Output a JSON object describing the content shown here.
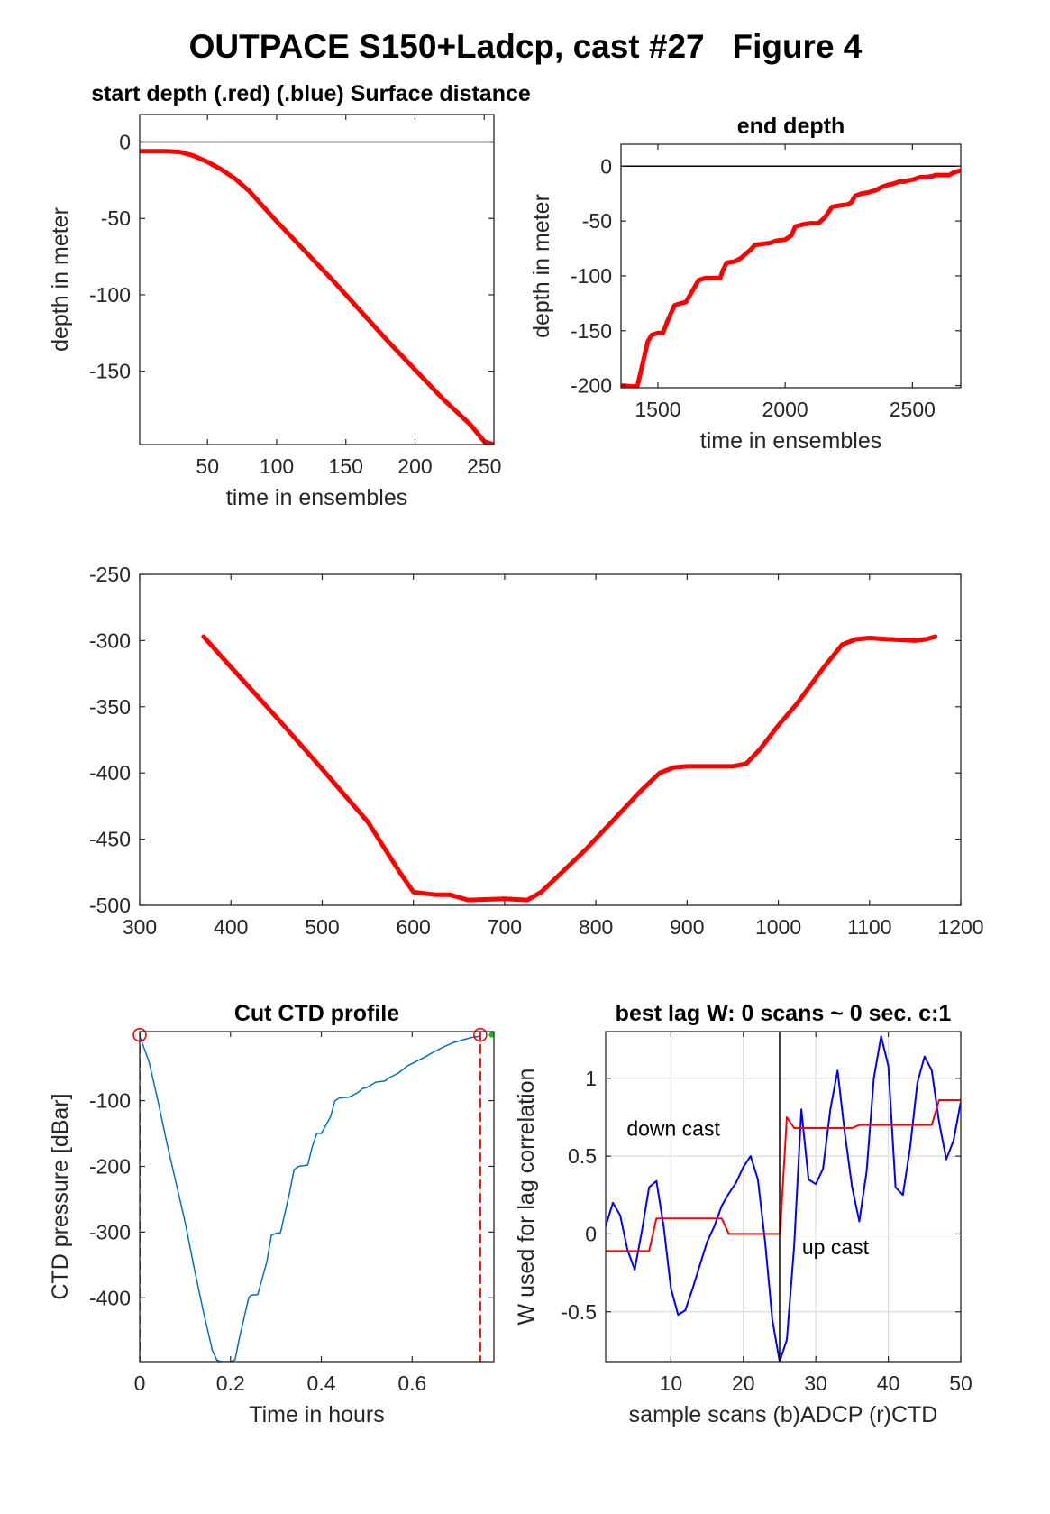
{
  "figure": {
    "title": "OUTPACE S150+Ladcp, cast #27   Figure 4"
  },
  "chart_data": [
    {
      "id": "start",
      "type": "line",
      "title": "start depth (.red) (.blue) Surface distance",
      "xlabel": "time in ensembles",
      "ylabel": "depth in meter",
      "xlim": [
        1,
        257
      ],
      "ylim": [
        -198,
        18
      ],
      "xticks": [
        50,
        100,
        150,
        200,
        250
      ],
      "yticks": [
        0,
        -50,
        -100,
        -150
      ],
      "grid": false,
      "series": [
        {
          "color": "#ff0000",
          "width": 5,
          "x": [
            1,
            10,
            20,
            30,
            40,
            50,
            60,
            70,
            80,
            90,
            100,
            120,
            140,
            160,
            180,
            200,
            220,
            240,
            250,
            257
          ],
          "y": [
            -6,
            -6,
            -6,
            -6.5,
            -9,
            -13,
            -18,
            -24,
            -32,
            -42,
            -52,
            -71,
            -90,
            -110,
            -130,
            -149,
            -168,
            -185,
            -196,
            -198
          ]
        },
        {
          "color": "#000000",
          "width": 1.5,
          "x": [
            1,
            257
          ],
          "y": [
            0,
            0
          ]
        }
      ]
    },
    {
      "id": "end",
      "type": "line",
      "title": "end depth",
      "xlabel": "time in ensembles",
      "ylabel": "depth in meter",
      "xlim": [
        1355,
        2690
      ],
      "ylim": [
        -202,
        20
      ],
      "xticks": [
        1500,
        2000,
        2500
      ],
      "yticks": [
        0,
        -50,
        -100,
        -150,
        -200
      ],
      "grid": false,
      "series": [
        {
          "color": "#ff0000",
          "width": 5,
          "x": [
            1360,
            1405,
            1420,
            1440,
            1460,
            1475,
            1500,
            1520,
            1540,
            1565,
            1590,
            1610,
            1640,
            1660,
            1685,
            1705,
            1745,
            1755,
            1770,
            1800,
            1825,
            1865,
            1880,
            1905,
            1940,
            1965,
            2000,
            2025,
            2040,
            2055,
            2070,
            2100,
            2130,
            2155,
            2185,
            2210,
            2245,
            2260,
            2275,
            2300,
            2325,
            2355,
            2380,
            2405,
            2425,
            2450,
            2470,
            2485,
            2505,
            2530,
            2550,
            2580,
            2590,
            2605,
            2645,
            2660,
            2685
          ],
          "y": [
            -200,
            -201,
            -200,
            -180,
            -160,
            -154,
            -152,
            -152,
            -140,
            -127,
            -125,
            -124,
            -112,
            -104,
            -102,
            -102,
            -102,
            -95,
            -88,
            -87,
            -84,
            -76,
            -72,
            -71,
            -70,
            -68,
            -67,
            -63,
            -55,
            -54,
            -53,
            -52,
            -52,
            -47,
            -37,
            -36,
            -35,
            -33,
            -27,
            -25,
            -24,
            -22,
            -19,
            -17,
            -16,
            -14,
            -14,
            -13,
            -12,
            -10,
            -10,
            -9,
            -8,
            -8,
            -8,
            -6,
            -4
          ]
        },
        {
          "color": "#000000",
          "width": 1.5,
          "x": [
            1355,
            2690
          ],
          "y": [
            0,
            0
          ]
        }
      ]
    },
    {
      "id": "middle",
      "type": "line",
      "title": "",
      "xlabel": "",
      "ylabel": "",
      "xlim": [
        300,
        1200
      ],
      "ylim": [
        -500,
        -250
      ],
      "xticks": [
        300,
        400,
        500,
        600,
        700,
        800,
        900,
        1000,
        1100,
        1200
      ],
      "yticks": [
        -250,
        -300,
        -350,
        -400,
        -450,
        -500
      ],
      "grid": false,
      "series": [
        {
          "color": "#ff0000",
          "width": 5,
          "x": [
            370,
            400,
            450,
            500,
            550,
            585,
            600,
            625,
            640,
            660,
            700,
            725,
            740,
            760,
            790,
            820,
            850,
            870,
            885,
            900,
            950,
            965,
            980,
            1000,
            1020,
            1050,
            1070,
            1085,
            1100,
            1120,
            1150,
            1162,
            1172
          ],
          "y": [
            -297,
            -320,
            -358,
            -397,
            -437,
            -475,
            -490,
            -492,
            -492,
            -496,
            -495,
            -496,
            -490,
            -477,
            -457,
            -435,
            -413,
            -400,
            -396,
            -395,
            -395,
            -393,
            -382,
            -364,
            -348,
            -320,
            -303,
            -299,
            -298,
            -299,
            -300,
            -299,
            -297
          ]
        }
      ]
    },
    {
      "id": "ctd",
      "type": "line",
      "title": "Cut CTD profile",
      "xlabel": "Time in hours",
      "ylabel": "CTD pressure [dBar]",
      "xlim": [
        0,
        0.78
      ],
      "ylim": [
        -497,
        5
      ],
      "xticks": [
        0,
        0.2,
        0.4,
        0.6
      ],
      "yticks": [
        -100,
        -200,
        -300,
        -400
      ],
      "grid": false,
      "series": [
        {
          "color": "#0072bd",
          "width": 1.5,
          "x": [
            0,
            0.02,
            0.04,
            0.06,
            0.08,
            0.1,
            0.12,
            0.14,
            0.16,
            0.17,
            0.18,
            0.2,
            0.21,
            0.22,
            0.24,
            0.245,
            0.26,
            0.28,
            0.29,
            0.3,
            0.31,
            0.33,
            0.34,
            0.35,
            0.37,
            0.38,
            0.39,
            0.4,
            0.42,
            0.43,
            0.44,
            0.46,
            0.48,
            0.49,
            0.5,
            0.52,
            0.54,
            0.55,
            0.57,
            0.59,
            0.61,
            0.63,
            0.65,
            0.67,
            0.69,
            0.71,
            0.73,
            0.75
          ],
          "y": [
            -2,
            -40,
            -100,
            -165,
            -225,
            -285,
            -355,
            -420,
            -480,
            -495,
            -497,
            -497,
            -494,
            -460,
            -400,
            -396,
            -395,
            -345,
            -305,
            -302,
            -301,
            -240,
            -205,
            -200,
            -198,
            -170,
            -150,
            -150,
            -125,
            -100,
            -96,
            -95,
            -88,
            -82,
            -80,
            -72,
            -70,
            -65,
            -58,
            -47,
            -40,
            -33,
            -25,
            -18,
            -12,
            -8,
            -4,
            -2
          ]
        },
        {
          "color": "#ff0000",
          "width": 2,
          "dash": "9,6",
          "x": [
            0,
            0
          ],
          "y": [
            5,
            -497
          ]
        },
        {
          "color": "#ff0000",
          "width": 2,
          "dash": "9,6",
          "x": [
            0.75,
            0.75
          ],
          "y": [
            5,
            -497
          ]
        }
      ],
      "markers": [
        {
          "x": 0,
          "y": 0,
          "shape": "circle",
          "color": "#ff0000"
        },
        {
          "x": 0.75,
          "y": 0,
          "shape": "circle",
          "color": "#ff0000"
        },
        {
          "x": 0.775,
          "y": 0,
          "shape": "dot",
          "color": "#00c800"
        }
      ]
    },
    {
      "id": "lag",
      "type": "line",
      "title": "best lag W: 0 scans ~ 0 sec.  c:1",
      "xlabel": "sample scans (b)ADCP (r)CTD",
      "ylabel": "W used for lag correlation",
      "xlim": [
        1,
        50
      ],
      "ylim": [
        -0.82,
        1.3
      ],
      "xticks": [
        10,
        20,
        30,
        40,
        50
      ],
      "yticks": [
        1,
        0.5,
        0,
        -0.5
      ],
      "grid": true,
      "annotations": [
        {
          "text": "down cast",
          "x": 3.9,
          "y": 0.63
        },
        {
          "text": "up cast",
          "x": 28.1,
          "y": -0.13
        }
      ],
      "series": [
        {
          "color": "#0000ff",
          "width": 2,
          "x": [
            1,
            2,
            3,
            4,
            5,
            6,
            7,
            8,
            9,
            10,
            11,
            12,
            13,
            14,
            15,
            16,
            17,
            18,
            19,
            20,
            21,
            22,
            23,
            24,
            25,
            26,
            27,
            28,
            29,
            30,
            31,
            32,
            33,
            34,
            35,
            36,
            37,
            38,
            39,
            40,
            41,
            42,
            43,
            44,
            45,
            46,
            47,
            48,
            49,
            50
          ],
          "y": [
            0.05,
            0.2,
            0.12,
            -0.1,
            -0.23,
            0.02,
            0.3,
            0.34,
            0.05,
            -0.35,
            -0.52,
            -0.49,
            -0.35,
            -0.2,
            -0.05,
            0.05,
            0.18,
            0.26,
            0.33,
            0.43,
            0.5,
            0.35,
            -0.05,
            -0.55,
            -0.82,
            -0.68,
            -0.08,
            0.8,
            0.35,
            0.32,
            0.42,
            0.8,
            1.05,
            0.65,
            0.3,
            0.08,
            0.4,
            1.0,
            1.27,
            1.08,
            0.3,
            0.25,
            0.55,
            0.97,
            1.14,
            1.05,
            0.72,
            0.48,
            0.6,
            0.85
          ]
        },
        {
          "color": "#ff0000",
          "width": 2,
          "x": [
            1,
            6,
            7,
            8,
            9,
            10,
            16,
            17,
            18,
            19,
            20,
            25,
            25.05,
            26,
            27,
            28,
            35,
            36,
            37,
            45,
            46,
            47,
            50
          ],
          "y": [
            -0.11,
            -0.11,
            -0.11,
            0.1,
            0.1,
            0.1,
            0.1,
            0.1,
            0.0,
            0.0,
            0.0,
            0.0,
            0.0,
            0.75,
            0.68,
            0.68,
            0.68,
            0.7,
            0.7,
            0.7,
            0.7,
            0.86,
            0.86
          ]
        },
        {
          "color": "#000000",
          "width": 1.5,
          "x": [
            25,
            25
          ],
          "y": [
            -0.82,
            1.3
          ]
        }
      ]
    }
  ]
}
